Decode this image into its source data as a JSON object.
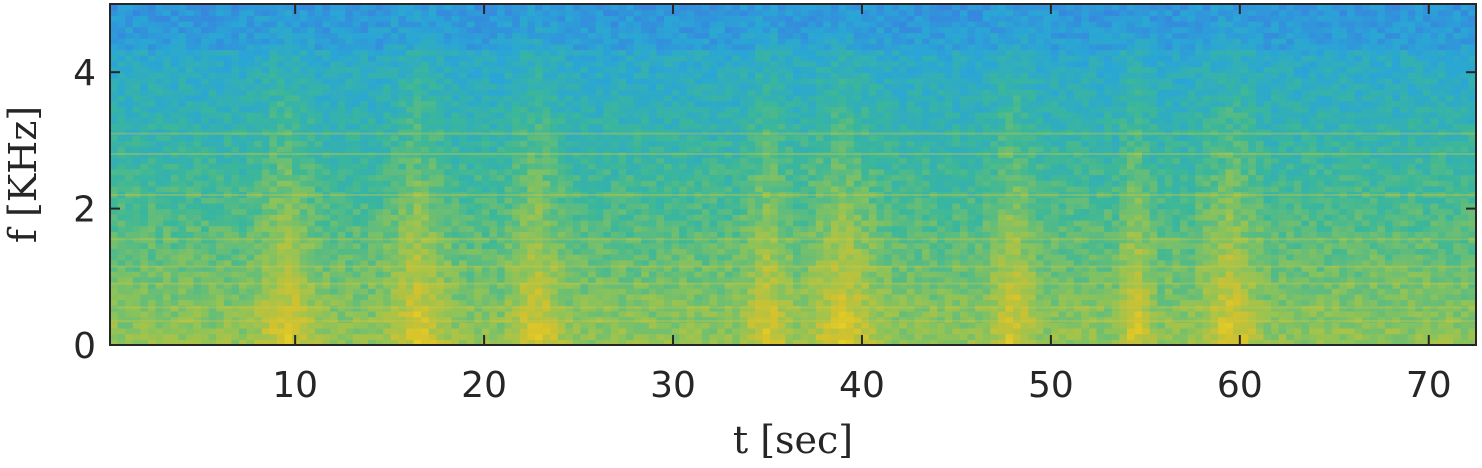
{
  "chart_data": {
    "type": "heatmap",
    "xlabel": "t [sec]",
    "ylabel": "f [KHz]",
    "xlim": [
      0.2,
      72.5
    ],
    "ylim": [
      0,
      5
    ],
    "xticks": [
      10,
      20,
      30,
      40,
      50,
      60,
      70
    ],
    "yticks": [
      0,
      2,
      4
    ],
    "grid": false,
    "colormap": [
      "#3a7fe0",
      "#2aa6d6",
      "#3bb79a",
      "#8cc35a",
      "#d6c22c",
      "#f9e21e"
    ],
    "harmonic_lines_khz": [
      0.35,
      0.55,
      0.9,
      1.15,
      1.55,
      2.2,
      2.8,
      3.1
    ],
    "high_energy_intervals_sec": [
      [
        8,
        11
      ],
      [
        15,
        18
      ],
      [
        21.5,
        24
      ],
      [
        34,
        36
      ],
      [
        37,
        41
      ],
      [
        47,
        49
      ],
      [
        54,
        55
      ],
      [
        58,
        61
      ]
    ]
  }
}
